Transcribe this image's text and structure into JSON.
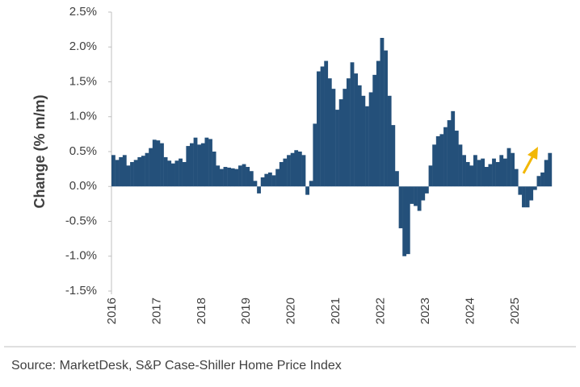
{
  "chart_data": {
    "type": "bar",
    "y_label": "Change (% m/m)",
    "source": "Source: MarketDesk, S&P Case-Shiller Home Price Index",
    "color": "#24507a",
    "categories": [
      "2016",
      null,
      null,
      null,
      null,
      null,
      null,
      null,
      null,
      null,
      null,
      null,
      "2017",
      null,
      null,
      null,
      null,
      null,
      null,
      null,
      null,
      null,
      null,
      null,
      "2018",
      null,
      null,
      null,
      null,
      null,
      null,
      null,
      null,
      null,
      null,
      null,
      "2019",
      null,
      null,
      null,
      null,
      null,
      null,
      null,
      null,
      null,
      null,
      null,
      "2020",
      null,
      null,
      null,
      null,
      null,
      null,
      null,
      null,
      null,
      null,
      null,
      "2021",
      null,
      null,
      null,
      null,
      null,
      null,
      null,
      null,
      null,
      null,
      null,
      "2022",
      null,
      null,
      null,
      null,
      null,
      null,
      null,
      null,
      null,
      null,
      null,
      "2023",
      null,
      null,
      null,
      null,
      null,
      null,
      null,
      null,
      null,
      null,
      null,
      "2024",
      null,
      null,
      null,
      null,
      null,
      null,
      null,
      null,
      null,
      null,
      null,
      "2025",
      null,
      null,
      null,
      null,
      null,
      null,
      null,
      null,
      null
    ],
    "values": [
      0.45,
      0.38,
      0.42,
      0.45,
      0.3,
      0.35,
      0.38,
      0.42,
      0.44,
      0.48,
      0.55,
      0.67,
      0.66,
      0.62,
      0.42,
      0.37,
      0.33,
      0.37,
      0.4,
      0.35,
      0.58,
      0.62,
      0.7,
      0.6,
      0.62,
      0.7,
      0.68,
      0.5,
      0.3,
      0.25,
      0.28,
      0.27,
      0.26,
      0.25,
      0.3,
      0.32,
      0.28,
      0.22,
      0.08,
      -0.1,
      0.13,
      0.18,
      0.2,
      0.16,
      0.25,
      0.35,
      0.4,
      0.45,
      0.48,
      0.52,
      0.5,
      0.45,
      -0.12,
      0.08,
      0.9,
      1.65,
      1.72,
      1.8,
      1.55,
      1.4,
      1.1,
      1.25,
      1.4,
      1.55,
      1.78,
      1.62,
      1.45,
      1.3,
      1.15,
      1.35,
      1.6,
      1.8,
      2.13,
      1.95,
      1.3,
      0.88,
      0.22,
      -0.6,
      -1.0,
      -0.97,
      -0.25,
      -0.28,
      -0.35,
      -0.2,
      -0.1,
      0.3,
      0.6,
      0.72,
      0.75,
      0.85,
      0.95,
      1.08,
      0.8,
      0.6,
      0.45,
      0.35,
      0.3,
      0.45,
      0.38,
      0.4,
      0.28,
      0.32,
      0.4,
      0.35,
      0.45,
      0.4,
      0.55,
      0.48,
      0.25,
      -0.12,
      -0.3,
      -0.3,
      -0.2,
      -0.05,
      0.15,
      0.2,
      0.38,
      0.48
    ],
    "ylim": [
      -1.5,
      2.5
    ],
    "yticks": [
      {
        "value": 2.5,
        "label": "2.5%"
      },
      {
        "value": 2.0,
        "label": "2.0%"
      },
      {
        "value": 1.5,
        "label": "1.5%"
      },
      {
        "value": 1.0,
        "label": "1.0%"
      },
      {
        "value": 0.5,
        "label": "0.5%"
      },
      {
        "value": 0,
        "label": "0.0%"
      },
      {
        "value": -0.5,
        "label": "-0.5%"
      },
      {
        "value": -1.0,
        "label": "-1.0%"
      },
      {
        "value": -1.5,
        "label": "-1.5%"
      }
    ]
  }
}
